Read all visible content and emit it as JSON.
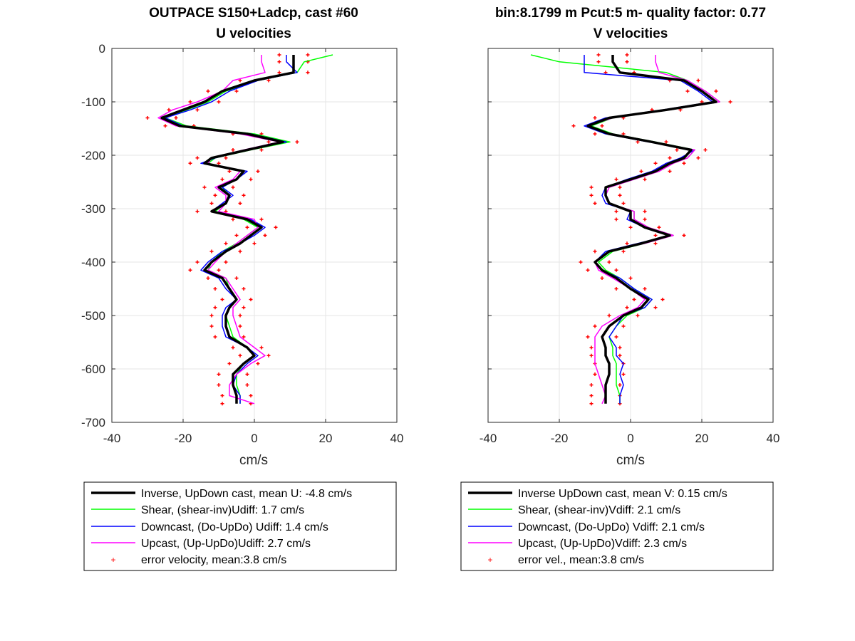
{
  "figure": {
    "left_title": "OUTPACE S150+Ladcp, cast #60",
    "left_subtitle": "U velocities",
    "right_title": "bin:8.1799 m  Pcut:5 m- quality factor:  0.77",
    "right_subtitle": "V velocities"
  },
  "colors": {
    "inverse": "#000000",
    "shear": "#00ff00",
    "downcast": "#0000ff",
    "upcast": "#ff00ff",
    "error": "#ff0000",
    "grid": "#e6e6e6"
  },
  "chart_data": [
    {
      "type": "line",
      "title": "U velocities",
      "xlabel": "cm/s",
      "ylabel": "",
      "xlim": [
        -40,
        40
      ],
      "ylim": [
        -700,
        0
      ],
      "xticks": [
        -40,
        -20,
        0,
        20,
        40
      ],
      "yticks": [
        0,
        -100,
        -200,
        -300,
        -400,
        -500,
        -600,
        -700
      ],
      "grid": true,
      "legend_position": "below",
      "legend": [
        "Inverse, UpDown cast, mean U:  -4.8 cm/s",
        "Shear, (shear-inv)Udiff:  1.7 cm/s",
        "Downcast, (Do-UpDo) Udiff:  1.4 cm/s",
        "Upcast, (Up-UpDo)Udiff:  2.7 cm/s",
        "error velocity, mean:3.8 cm/s"
      ],
      "depth": [
        -12,
        -25,
        -45,
        -60,
        -80,
        -100,
        -115,
        -130,
        -145,
        -160,
        -175,
        -190,
        -205,
        -215,
        -230,
        -245,
        -260,
        -275,
        -290,
        -305,
        -320,
        -335,
        -350,
        -365,
        -380,
        -400,
        -415,
        -430,
        -450,
        -470,
        -485,
        -500,
        -520,
        -540,
        -560,
        -575,
        -590,
        -610,
        -630,
        -650,
        -665
      ],
      "series": [
        {
          "key": "inverse",
          "values": [
            11,
            11,
            11,
            0,
            -9,
            -14,
            -20,
            -26,
            -21,
            -2,
            8,
            -2,
            -12,
            -14,
            -3,
            -5,
            -10,
            -7,
            -8,
            -12,
            -2,
            2,
            -1,
            -4,
            -8,
            -12,
            -14,
            -9,
            -7,
            -5,
            -7,
            -8,
            -8,
            -7,
            -2,
            0,
            -3,
            -6,
            -6,
            -5,
            -5
          ],
          "width": 3.5
        },
        {
          "key": "shear",
          "values": [
            22,
            14,
            12,
            1,
            -8,
            -13,
            -19,
            -25,
            -19,
            0,
            10,
            -1,
            -11,
            -13,
            -3,
            -5,
            -9,
            -7,
            -8,
            -11,
            -3,
            1,
            -2,
            -5,
            -9,
            -12,
            -13,
            -8,
            -7,
            -5,
            -7,
            -8,
            -7,
            -6,
            -2,
            0,
            -3,
            -5,
            -5,
            -4,
            -4
          ],
          "width": 1.5
        },
        {
          "key": "downcast",
          "values": [
            9,
            9,
            12,
            1,
            -7,
            -12,
            -18,
            -25,
            -20,
            -1,
            9,
            -2,
            -11,
            -15,
            -2,
            -5,
            -9,
            -6,
            -9,
            -12,
            -1,
            3,
            0,
            -4,
            -9,
            -13,
            -15,
            -10,
            -8,
            -5,
            -8,
            -9,
            -9,
            -8,
            -2,
            1,
            -2,
            -5,
            -6,
            -4,
            -4
          ],
          "width": 1.5
        },
        {
          "key": "upcast",
          "values": [
            2,
            2,
            3,
            -6,
            -9,
            -16,
            -23,
            -27,
            -22,
            -4,
            7,
            -3,
            -12,
            -13,
            -4,
            -6,
            -11,
            -8,
            -8,
            -10,
            0,
            1,
            -2,
            -5,
            -8,
            -11,
            -13,
            -8,
            -6,
            -4,
            -6,
            -6,
            -5,
            -4,
            0,
            3,
            -1,
            -5,
            -7,
            -7,
            0
          ],
          "width": 1.5
        }
      ],
      "error_offset": 4
    },
    {
      "type": "line",
      "title": "V velocities",
      "xlabel": "cm/s",
      "ylabel": "",
      "xlim": [
        -40,
        40
      ],
      "ylim": [
        -700,
        0
      ],
      "xticks": [
        -40,
        -20,
        0,
        20,
        40
      ],
      "yticks": [
        0,
        -100,
        -200,
        -300,
        -400,
        -500,
        -600,
        -700
      ],
      "grid": true,
      "legend_position": "below",
      "legend": [
        "Inverse UpDown cast, mean V:  0.15 cm/s",
        "Shear, (shear-inv)Vdiff:  2.1 cm/s",
        "Downcast, (Do-UpDo) Vdiff:  2.1 cm/s",
        "Upcast, (Up-UpDo)Vdiff:  2.3 cm/s",
        "error vel., mean:3.8 cm/s"
      ],
      "depth": [
        -12,
        -25,
        -45,
        -60,
        -80,
        -100,
        -115,
        -130,
        -145,
        -160,
        -175,
        -190,
        -205,
        -215,
        -230,
        -245,
        -260,
        -275,
        -290,
        -305,
        -320,
        -335,
        -350,
        -365,
        -380,
        -400,
        -415,
        -430,
        -450,
        -470,
        -485,
        -500,
        -520,
        -540,
        -560,
        -575,
        -590,
        -610,
        -630,
        -650,
        -665
      ],
      "series": [
        {
          "key": "inverse",
          "values": [
            -5,
            -5,
            -3,
            15,
            20,
            24,
            10,
            -6,
            -12,
            -6,
            6,
            17,
            15,
            11,
            7,
            0,
            -7,
            -7,
            -6,
            0,
            0,
            4,
            11,
            3,
            -6,
            -10,
            -8,
            -4,
            0,
            5,
            3,
            -2,
            -6,
            -8,
            -7,
            -7,
            -6,
            -6,
            -7,
            -7,
            -7
          ],
          "width": 3.5
        },
        {
          "key": "shear",
          "values": [
            -28,
            -20,
            10,
            16,
            21,
            25,
            11,
            -5,
            -11,
            -5,
            7,
            18,
            16,
            12,
            8,
            1,
            -6,
            -7,
            -6,
            1,
            1,
            5,
            12,
            4,
            -5,
            -9,
            -7,
            -3,
            1,
            6,
            4,
            -1,
            -4,
            -6,
            -5,
            -5,
            -4,
            -4,
            -4,
            -3,
            -3
          ],
          "width": 1.5
        },
        {
          "key": "downcast",
          "values": [
            -13,
            -13,
            -13,
            14,
            19,
            23,
            9,
            -7,
            -13,
            -7,
            5,
            18,
            14,
            10,
            6,
            -1,
            -7,
            -8,
            -7,
            0,
            -1,
            4,
            11,
            2,
            -7,
            -10,
            -8,
            -3,
            1,
            6,
            4,
            -2,
            -4,
            -6,
            -4,
            -4,
            -2,
            -3,
            -2,
            -3,
            -3
          ],
          "width": 1.5
        },
        {
          "key": "upcast",
          "values": [
            7,
            7,
            8,
            16,
            21,
            25,
            11,
            -5,
            -12,
            -6,
            6,
            18,
            16,
            12,
            8,
            1,
            -6,
            -7,
            -6,
            1,
            1,
            5,
            12,
            4,
            -6,
            -10,
            -9,
            -5,
            0,
            4,
            2,
            -3,
            -8,
            -10,
            -10,
            -10,
            -10,
            -9,
            -8,
            -7,
            -8
          ],
          "width": 1.5
        }
      ],
      "error_offset": 4
    }
  ]
}
